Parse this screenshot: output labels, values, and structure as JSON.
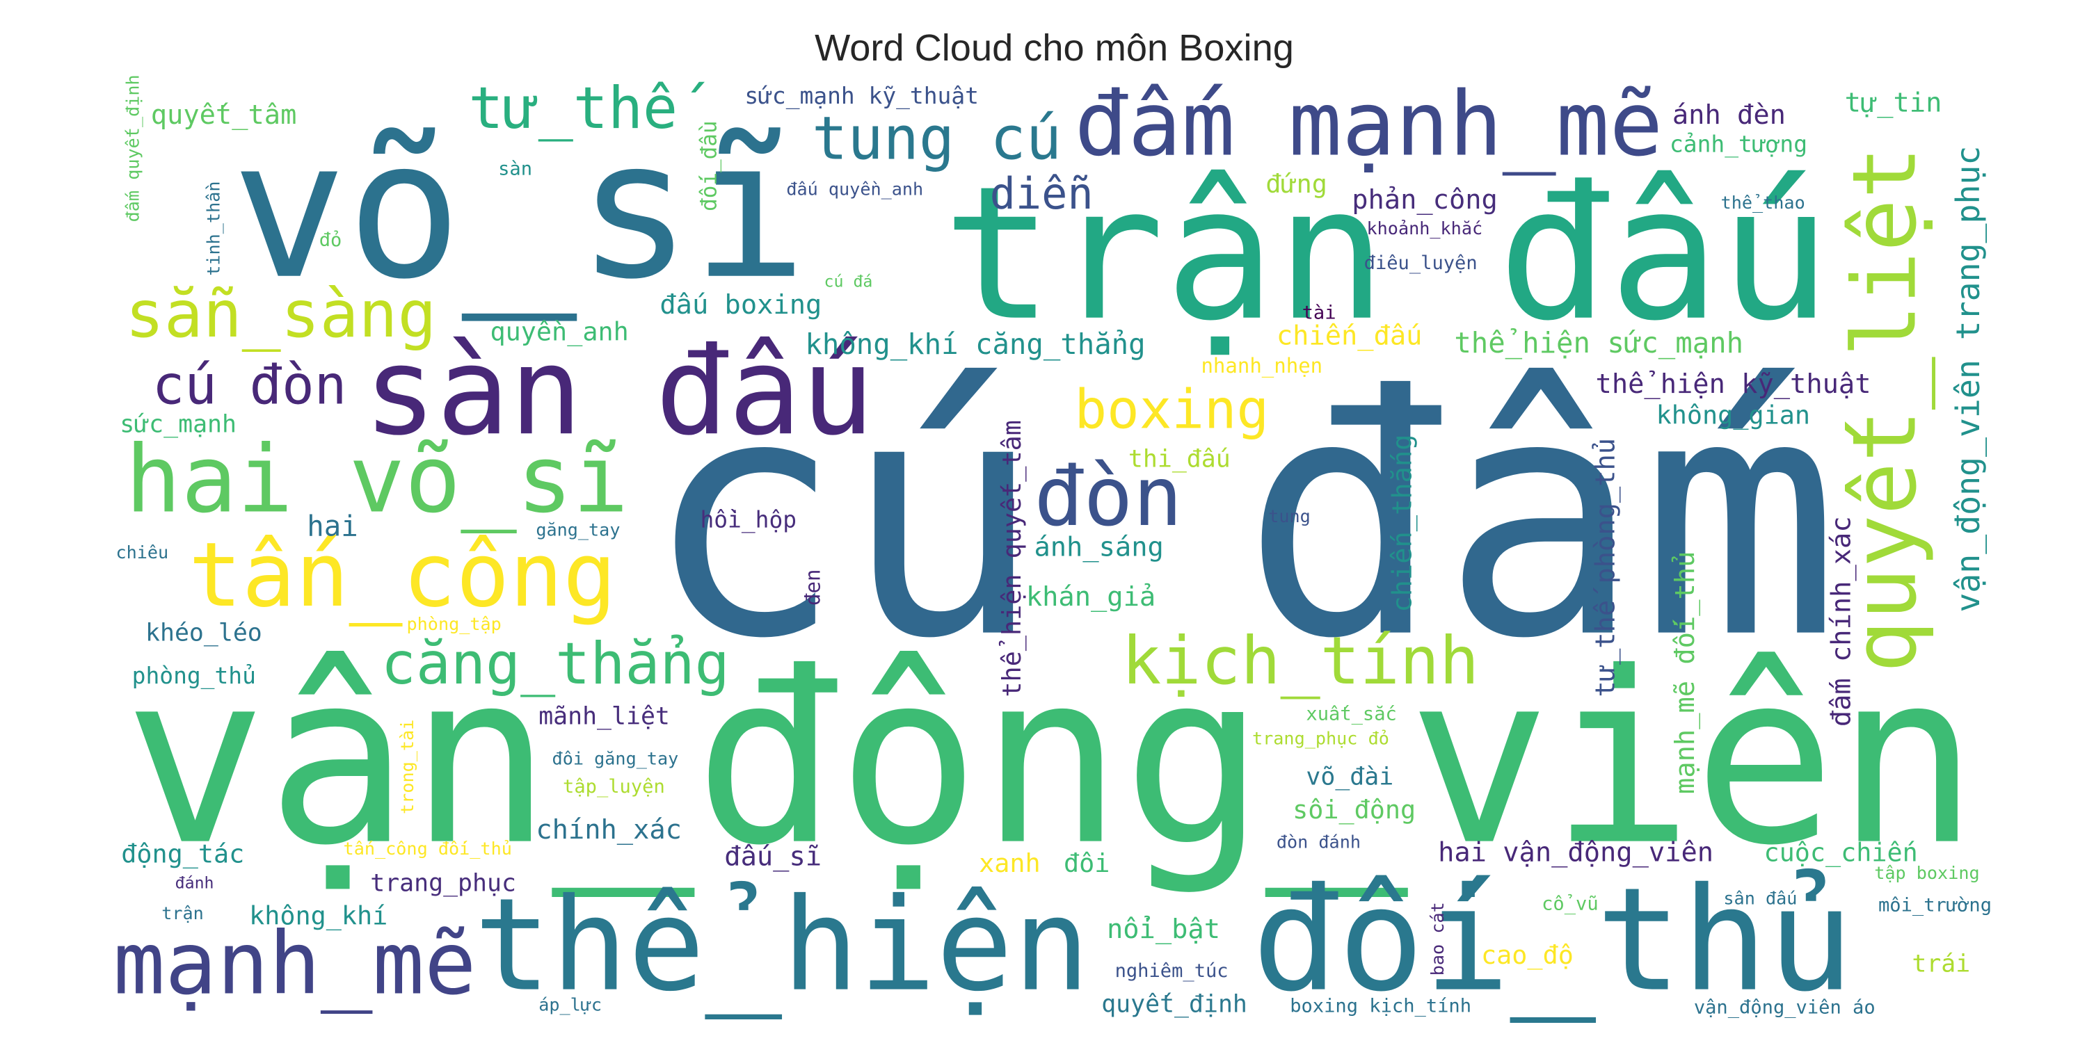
{
  "title": "Word Cloud cho môn Boxing",
  "words": [
    "cú đấm",
    "vận_động_viên",
    "trận đấu",
    "võ_sĩ",
    "sàn đấu",
    "thể_hiện",
    "đối_thủ",
    "đấm mạnh_mẽ",
    "quyết_liệt",
    "hai võ_sĩ",
    "tấn_công",
    "mạnh_mẽ",
    "đòn",
    "kịch_tính",
    "sẵn_sàng",
    "tung cú",
    "tư_thế",
    "căng_thẳng",
    "cú đòn",
    "boxing",
    "diễn",
    "quyết_tâm",
    "sức_mạnh kỹ_thuật",
    "sàn",
    "đỏ",
    "đối_đầu",
    "đấu quyền_anh",
    "cú đá",
    "ánh đèn",
    "tự_tin",
    "cảnh_tượng",
    "đứng",
    "phản_công",
    "khoảnh_khắc",
    "thể_thao",
    "điêu_luyện",
    "tài",
    "vận_động_viên trang_phục",
    "quyền_anh",
    "đấu boxing",
    "không_khí căng_thẳng",
    "chiến_đấu",
    "thể_hiện sức_mạnh",
    "nhanh_nhẹn",
    "thể_hiện kỹ_thuật",
    "không_gian",
    "sức_mạnh",
    "thi_đấu",
    "tung",
    "hồi_hộp",
    "hai",
    "găng_tay",
    "chiêu",
    "ánh_sáng",
    "khán_giả",
    "khéo_léo",
    "phòng_tập",
    "phòng_thủ",
    "đen",
    "thể_hiện quyết_tâm",
    "chiến_thắng",
    "tư_thế phòng_thủ",
    "mạnh_mẽ đối_thủ",
    "đấm chính_xác",
    "mãnh_liệt",
    "xuất_sắc",
    "trang_phục đỏ",
    "đôi găng_tay",
    "tập_luyện",
    "trong_tài",
    "võ_đài",
    "sôi_động",
    "chính_xác",
    "đấu_sĩ",
    "động_tác",
    "tấn_công đối_thủ",
    "xanh",
    "đôi",
    "đòn đánh",
    "hai vận_động_viên",
    "cuộc_chiến",
    "tập boxing",
    "môi_trường",
    "đánh",
    "trận",
    "trang_phục",
    "không_khí",
    "cổ_vũ",
    "sân đấu",
    "bao cát",
    "nổi_bật",
    "cao_độ",
    "trái",
    "nghiêm_túc",
    "áp_lực",
    "quyết_định",
    "boxing kịch_tính",
    "vận_động_viên áo",
    "đấm quyết_định",
    "tinh_thần"
  ]
}
